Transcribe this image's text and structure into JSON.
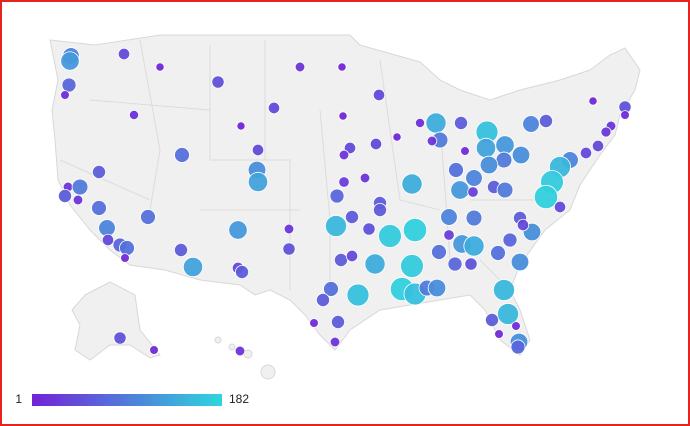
{
  "chart_data": {
    "type": "bubble-map",
    "values": [
      100,
      120,
      40,
      5,
      70,
      10,
      15,
      50,
      20,
      5,
      40,
      40,
      3,
      5,
      80,
      40,
      110,
      130,
      40,
      20,
      40,
      5,
      15,
      140,
      60,
      90,
      20,
      160,
      120,
      100,
      60,
      5,
      50,
      10,
      20,
      25,
      40,
      40,
      100,
      150,
      170,
      175,
      40,
      110,
      90,
      130,
      110,
      10,
      80,
      100,
      120,
      30,
      60,
      90,
      20,
      70,
      60,
      140,
      60,
      20,
      90,
      60,
      20,
      80,
      100,
      80,
      40,
      70,
      80,
      10,
      60,
      130,
      120,
      40,
      60,
      20,
      50,
      150,
      60,
      50,
      170,
      175,
      100,
      90,
      30,
      120,
      140,
      60,
      110,
      40,
      70,
      60,
      40,
      140,
      170,
      80,
      70,
      50,
      80,
      110,
      80,
      160,
      175,
      160,
      90,
      110,
      150,
      60,
      10,
      60,
      20,
      60,
      150,
      10,
      10,
      110,
      70,
      50,
      10,
      20,
      30,
      60
    ],
    "colorbar": {
      "min": 1,
      "max": 182,
      "colors": [
        "#7321d8",
        "#2ed6dc"
      ]
    }
  }
}
